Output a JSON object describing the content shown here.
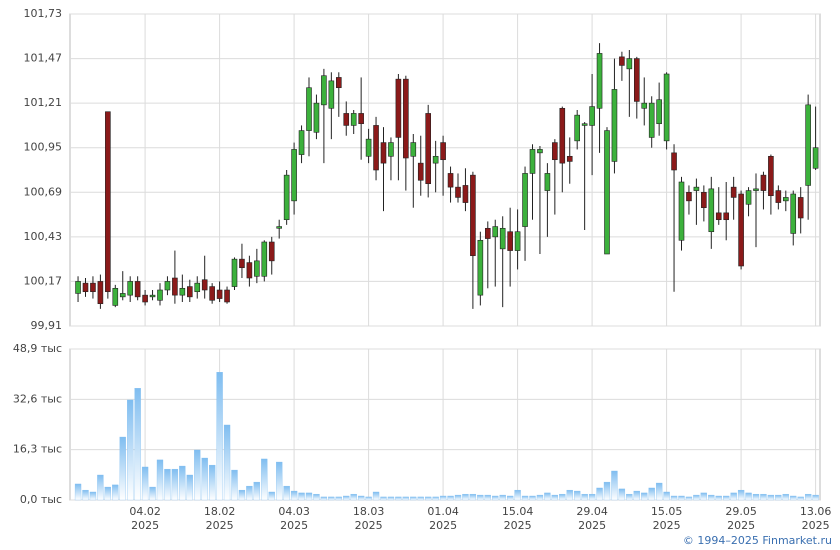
{
  "chart_data": [
    {
      "type": "candlestick",
      "up_color": "#3cb13c",
      "down_color": "#8b1a1a",
      "ylim": [
        99.91,
        101.73
      ],
      "yticks": [
        {
          "value": 99.91,
          "label": "99,91"
        },
        {
          "value": 100.17,
          "label": "100,17"
        },
        {
          "value": 100.43,
          "label": "100,43"
        },
        {
          "value": 100.69,
          "label": "100,69"
        },
        {
          "value": 100.95,
          "label": "100,95"
        },
        {
          "value": 101.21,
          "label": "101,21"
        },
        {
          "value": 101.47,
          "label": "101,47"
        },
        {
          "value": 101.73,
          "label": "101,73"
        }
      ],
      "grid": true,
      "open": [
        100.1,
        100.16,
        100.16,
        100.17,
        101.16,
        100.03,
        100.08,
        100.09,
        100.17,
        100.09,
        100.08,
        100.06,
        100.12,
        100.19,
        100.09,
        100.14,
        100.11,
        100.18,
        100.14,
        100.12,
        100.12,
        100.14,
        100.3,
        100.28,
        100.2,
        100.2,
        100.4,
        100.48,
        100.53,
        100.64,
        100.91,
        101.05,
        101.04,
        101.2,
        101.18,
        101.36,
        101.15,
        101.08,
        101.15,
        100.9,
        101.08,
        100.98,
        100.9,
        101.35,
        101.35,
        100.9,
        100.86,
        101.15,
        100.86,
        100.98,
        100.8,
        100.72,
        100.73,
        100.79,
        100.09,
        100.48,
        100.43,
        100.36,
        100.46,
        100.35,
        100.49,
        100.8,
        100.92,
        100.7,
        100.98,
        101.18,
        100.9,
        100.99,
        101.08,
        101.08,
        101.18,
        100.33,
        100.87,
        101.48,
        101.41,
        101.47,
        101.18,
        101.01,
        101.09,
        100.99,
        100.92,
        100.41,
        100.69,
        100.7,
        100.69,
        100.46,
        100.57,
        100.57,
        100.72,
        100.68,
        100.62,
        100.7,
        100.79,
        100.9,
        100.7,
        100.64,
        100.45,
        100.66,
        100.73,
        100.83
      ],
      "close": [
        100.17,
        100.11,
        100.11,
        100.04,
        100.11,
        100.13,
        100.1,
        100.17,
        100.08,
        100.05,
        100.09,
        100.12,
        100.17,
        100.09,
        100.13,
        100.08,
        100.16,
        100.12,
        100.06,
        100.07,
        100.05,
        100.3,
        100.25,
        100.19,
        100.29,
        100.4,
        100.29,
        100.49,
        100.79,
        100.94,
        101.05,
        101.3,
        101.21,
        101.37,
        101.34,
        101.3,
        101.08,
        101.15,
        101.09,
        101.0,
        100.82,
        100.86,
        100.98,
        101.01,
        100.89,
        100.98,
        100.76,
        100.74,
        100.9,
        100.88,
        100.72,
        100.66,
        100.63,
        100.32,
        100.41,
        100.42,
        100.49,
        100.48,
        100.35,
        100.46,
        100.8,
        100.94,
        100.94,
        100.8,
        100.88,
        100.86,
        100.87,
        101.14,
        101.09,
        101.19,
        101.5,
        101.05,
        101.29,
        101.43,
        101.47,
        101.22,
        101.21,
        101.21,
        101.23,
        101.38,
        100.82,
        100.75,
        100.64,
        100.72,
        100.6,
        100.71,
        100.53,
        100.53,
        100.66,
        100.26,
        100.7,
        100.71,
        100.7,
        100.67,
        100.63,
        100.66,
        100.68,
        100.54,
        101.2,
        100.95
      ],
      "high": [
        100.2,
        100.19,
        100.2,
        100.21,
        101.16,
        100.15,
        100.23,
        100.2,
        100.2,
        100.12,
        100.12,
        100.16,
        100.2,
        100.35,
        100.21,
        100.18,
        100.2,
        100.32,
        100.16,
        100.17,
        100.14,
        100.31,
        100.39,
        100.32,
        100.36,
        100.41,
        100.43,
        100.53,
        100.82,
        100.98,
        101.08,
        101.36,
        101.26,
        101.41,
        101.39,
        101.39,
        101.22,
        101.17,
        101.36,
        101.06,
        101.13,
        101.07,
        101.01,
        101.38,
        101.37,
        101.03,
        101.02,
        101.2,
        100.99,
        101.02,
        100.84,
        100.8,
        100.83,
        100.81,
        100.46,
        100.52,
        100.53,
        100.55,
        100.6,
        100.59,
        100.84,
        100.97,
        100.96,
        100.86,
        101.0,
        101.19,
        101.01,
        101.17,
        101.1,
        101.38,
        101.56,
        101.07,
        101.47,
        101.51,
        101.52,
        101.48,
        101.36,
        101.25,
        101.33,
        101.39,
        100.97,
        100.78,
        100.73,
        100.77,
        100.73,
        100.78,
        100.72,
        100.75,
        100.78,
        100.7,
        100.72,
        100.8,
        100.81,
        100.91,
        100.73,
        100.7,
        100.7,
        100.72,
        101.26,
        101.19
      ],
      "low": [
        100.05,
        100.08,
        100.07,
        100.01,
        100.07,
        100.02,
        100.06,
        100.05,
        100.06,
        100.03,
        100.06,
        100.03,
        100.09,
        100.04,
        100.05,
        100.05,
        100.07,
        100.07,
        100.04,
        100.05,
        100.04,
        100.12,
        100.19,
        100.14,
        100.16,
        100.17,
        100.21,
        100.42,
        100.5,
        100.56,
        100.86,
        100.9,
        101.0,
        100.86,
        101.0,
        101.13,
        101.02,
        101.03,
        100.88,
        100.86,
        100.76,
        100.58,
        100.76,
        100.76,
        100.7,
        100.6,
        100.67,
        100.66,
        100.69,
        100.67,
        100.63,
        100.63,
        100.58,
        100.01,
        100.03,
        100.13,
        100.14,
        100.02,
        100.14,
        100.24,
        100.29,
        100.53,
        100.33,
        100.43,
        100.56,
        100.69,
        100.74,
        100.94,
        100.47,
        100.79,
        100.92,
        100.33,
        100.8,
        101.34,
        101.13,
        101.12,
        101.08,
        100.95,
        101.02,
        100.94,
        100.11,
        100.35,
        100.56,
        100.5,
        100.52,
        100.36,
        100.5,
        100.41,
        100.53,
        100.24,
        100.55,
        100.37,
        100.59,
        100.56,
        100.59,
        100.58,
        100.38,
        100.45,
        100.53,
        100.82
      ]
    },
    {
      "type": "bar",
      "color": "#7fbdf0",
      "ylim": [
        0,
        48.9
      ],
      "yticks": [
        {
          "value": 0,
          "label": "0,0 тыс"
        },
        {
          "value": 16.3,
          "label": "16,3 тыс"
        },
        {
          "value": 32.6,
          "label": "32,6 тыс"
        },
        {
          "value": 48.9,
          "label": "48,9 тыс"
        }
      ],
      "grid": true,
      "categories": [
        null,
        null,
        null,
        null,
        null,
        null,
        null,
        null,
        null,
        "04.02",
        null,
        null,
        null,
        null,
        null,
        null,
        null,
        null,
        null,
        "18.02",
        null,
        null,
        null,
        null,
        null,
        null,
        null,
        null,
        null,
        "04.03",
        null,
        null,
        null,
        null,
        null,
        null,
        null,
        null,
        null,
        "18.03",
        null,
        null,
        null,
        null,
        null,
        null,
        null,
        null,
        null,
        "01.04",
        null,
        null,
        null,
        null,
        null,
        null,
        null,
        null,
        null,
        "15.04",
        null,
        null,
        null,
        null,
        null,
        null,
        null,
        null,
        null,
        "29.04",
        null,
        null,
        null,
        null,
        null,
        null,
        null,
        null,
        null,
        "15.05",
        null,
        null,
        null,
        null,
        null,
        null,
        null,
        null,
        null,
        "29.05",
        null,
        null,
        null,
        null,
        null,
        null,
        null,
        null,
        null,
        "13.06"
      ],
      "years": [
        null,
        null,
        null,
        null,
        null,
        null,
        null,
        null,
        null,
        "2025",
        null,
        null,
        null,
        null,
        null,
        null,
        null,
        null,
        null,
        "2025",
        null,
        null,
        null,
        null,
        null,
        null,
        null,
        null,
        null,
        "2025",
        null,
        null,
        null,
        null,
        null,
        null,
        null,
        null,
        null,
        "2025",
        null,
        null,
        null,
        null,
        null,
        null,
        null,
        null,
        null,
        "2025",
        null,
        null,
        null,
        null,
        null,
        null,
        null,
        null,
        null,
        "2025",
        null,
        null,
        null,
        null,
        null,
        null,
        null,
        null,
        null,
        "2025",
        null,
        null,
        null,
        null,
        null,
        null,
        null,
        null,
        null,
        "2025",
        null,
        null,
        null,
        null,
        null,
        null,
        null,
        null,
        null,
        "2025",
        null,
        null,
        null,
        null,
        null,
        null,
        null,
        null,
        null,
        "2025"
      ],
      "values": [
        5.2,
        3.2,
        2.6,
        8.1,
        4.2,
        4.9,
        20.4,
        32.4,
        36.2,
        10.7,
        4.2,
        13,
        10,
        10,
        11,
        8.1,
        16.2,
        13.6,
        11.3,
        41.4,
        24.3,
        9.7,
        3.2,
        4.5,
        5.8,
        13.3,
        2.6,
        12.3,
        4.5,
        2.9,
        2.3,
        2.3,
        1.9,
        1,
        1,
        1,
        1.3,
        1.9,
        1.3,
        1,
        2.6,
        1,
        1,
        1,
        1,
        1,
        1,
        1,
        1,
        1.3,
        1.3,
        1.6,
        1.9,
        1.9,
        1.6,
        1.6,
        1.3,
        1.6,
        1.3,
        3.2,
        1.3,
        1.3,
        1.6,
        2.3,
        1.6,
        1.9,
        3.2,
        2.9,
        1.9,
        1.9,
        3.9,
        5.8,
        9.4,
        3.6,
        1.9,
        2.9,
        2.3,
        3.9,
        5.5,
        2.6,
        1.3,
        1.3,
        1,
        1.6,
        2.3,
        1.6,
        1.3,
        1.3,
        2.3,
        3.2,
        2.3,
        1.9,
        1.9,
        1.6,
        1.6,
        1.9,
        1.3,
        1,
        1.9,
        1.6
      ]
    }
  ],
  "footer": "© 1994–2025 Finmarket.ru"
}
